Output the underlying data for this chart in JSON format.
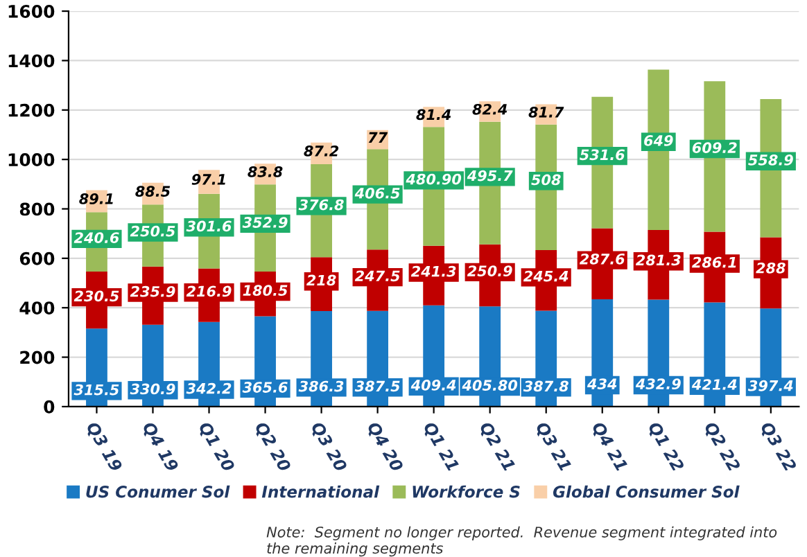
{
  "chart_data": {
    "type": "bar",
    "stacked": true,
    "categories": [
      "Q3 19",
      "Q4 19",
      "Q1 20",
      "Q2 20",
      "Q3 20",
      "Q4 20",
      "Q1 21",
      "Q2 21",
      "Q3 21",
      "Q4 21",
      "Q1 22",
      "Q2 22",
      "Q3 22"
    ],
    "series": [
      {
        "name": "US Conumer Sol",
        "color": "#1a7ac4",
        "values": [
          315.5,
          330.9,
          342.2,
          365.6,
          386.3,
          387.5,
          409.4,
          405.8,
          387.8,
          434,
          432.9,
          421.4,
          397.4
        ],
        "value_labels": [
          "315.5",
          "330.9",
          "342.2",
          "365.6",
          "386.3",
          "387.5",
          "409.4",
          "405.80",
          "387.8",
          "434",
          "432.9",
          "421.4",
          "397.4"
        ]
      },
      {
        "name": "International",
        "color": "#c00000",
        "values": [
          230.5,
          235.9,
          216.9,
          180.5,
          218,
          247.5,
          241.3,
          250.9,
          245.4,
          287.6,
          281.3,
          286.1,
          288
        ],
        "value_labels": [
          "230.5",
          "235.9",
          "216.9",
          "180.5",
          "218",
          "247.5",
          "241.3",
          "250.9",
          "245.4",
          "287.6",
          "281.3",
          "286.1",
          "288"
        ]
      },
      {
        "name": "Workforce S",
        "color": "#9bbb59",
        "values": [
          240.6,
          250.5,
          301.6,
          352.9,
          376.8,
          406.5,
          480.9,
          495.7,
          508,
          531.6,
          649,
          609.2,
          558.9
        ],
        "value_labels": [
          "240.6",
          "250.5",
          "301.6",
          "352.9",
          "376.8",
          "406.5",
          "480.90",
          "495.7",
          "508",
          "531.6",
          "649",
          "609.2",
          "558.9"
        ]
      },
      {
        "name": "Global Consumer Sol",
        "color": "#f9cfa8",
        "values": [
          89.1,
          88.5,
          97.1,
          83.8,
          87.2,
          77,
          81.4,
          82.4,
          81.7,
          null,
          null,
          null,
          null
        ],
        "value_labels": [
          "89.1",
          "88.5",
          "97.1",
          "83.8",
          "87.2",
          "77",
          "81.4",
          "82.4",
          "81.7",
          null,
          null,
          null,
          null
        ]
      }
    ],
    "ylim": [
      0,
      1600
    ],
    "yticks": [
      0,
      200,
      400,
      600,
      800,
      1000,
      1200,
      1400,
      1600
    ],
    "grid": "y",
    "legend": "bottom",
    "annotations": [
      "Note:  Segment no longer reported.  Revenue segment integrated into the remaining segments"
    ]
  }
}
